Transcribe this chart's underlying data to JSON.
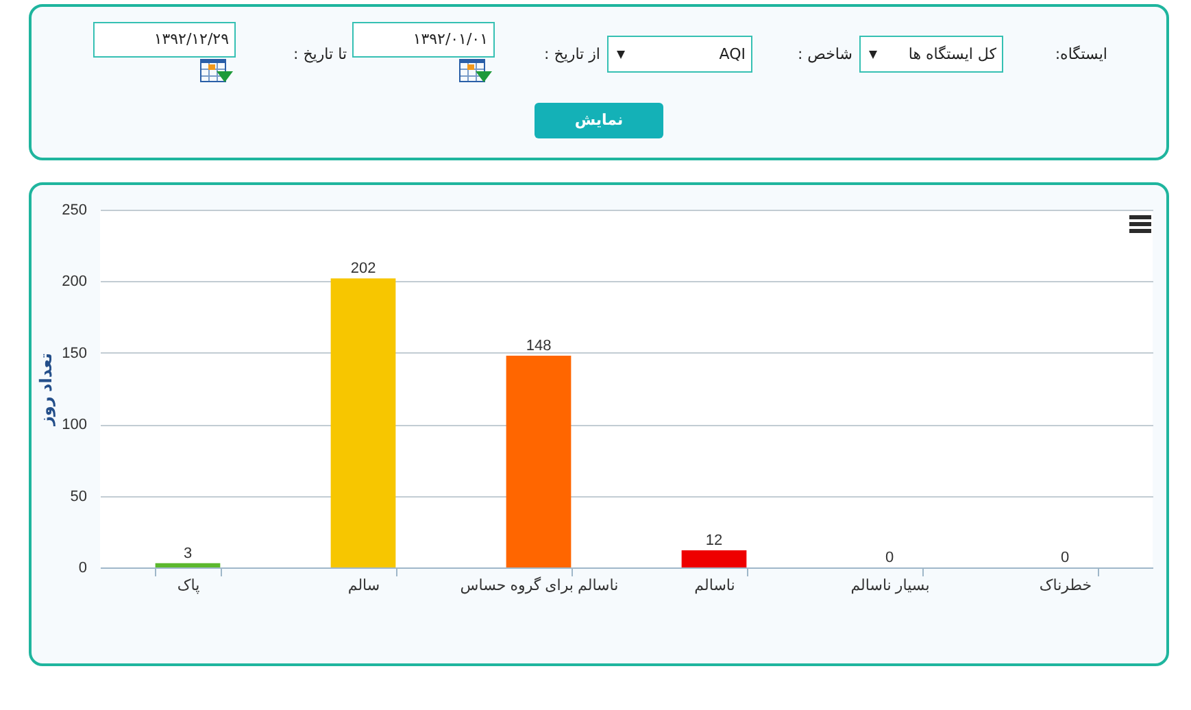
{
  "chart_data": [
    {
      "type": "other",
      "annotations": [
        "ایستگاه:",
        "کل ایستگاه ها",
        "شاخص :",
        "AQI",
        "از تاریخ :",
        "۱۳۹۲/۰۱/۰۱",
        "تا تاریخ :",
        "۱۳۹۲/۱۲/۲۹",
        "نمایش"
      ]
    },
    {
      "type": "bar",
      "ylabel": "تعداد روز",
      "categories": [
        "پاک",
        "سالم",
        "ناسالم برای گروه حساس",
        "ناسالم",
        "بسیار ناسالم",
        "خطرناک"
      ],
      "values": [
        3,
        202,
        148,
        12,
        0,
        0
      ],
      "colors": [
        "#5cb82e",
        "#f7c600",
        "#ff6600",
        "#ee0000",
        null,
        null
      ],
      "ylim": [
        0,
        250
      ],
      "yticks": [
        0,
        50,
        100,
        150,
        200,
        250
      ],
      "grid": "y",
      "data_labels": true
    }
  ]
}
